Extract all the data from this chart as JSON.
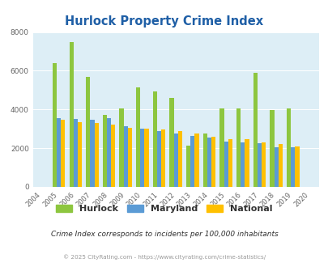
{
  "title": "Hurlock Property Crime Index",
  "years": [
    2004,
    2005,
    2006,
    2007,
    2008,
    2009,
    2010,
    2011,
    2012,
    2013,
    2014,
    2015,
    2016,
    2017,
    2018,
    2019,
    2020
  ],
  "hurlock": [
    null,
    6400,
    7500,
    5700,
    3700,
    4050,
    5150,
    4950,
    4600,
    2150,
    2750,
    4050,
    4050,
    5900,
    3950,
    4050,
    null
  ],
  "maryland": [
    null,
    3550,
    3500,
    3450,
    3550,
    3150,
    3000,
    2900,
    2750,
    2650,
    2550,
    2350,
    2300,
    2250,
    2050,
    2050,
    null
  ],
  "national": [
    null,
    3450,
    3350,
    3300,
    3200,
    3050,
    3000,
    2950,
    2900,
    2750,
    2600,
    2450,
    2450,
    2300,
    2200,
    2100,
    null
  ],
  "bar_width": 0.25,
  "hurlock_color": "#8dc63f",
  "maryland_color": "#5b9bd5",
  "national_color": "#ffc000",
  "bg_color": "#ddeef6",
  "ylim": [
    0,
    8000
  ],
  "yticks": [
    0,
    2000,
    4000,
    6000,
    8000
  ],
  "subtitle": "Crime Index corresponds to incidents per 100,000 inhabitants",
  "footer": "© 2025 CityRating.com - https://www.cityrating.com/crime-statistics/",
  "title_color": "#1f5fa6",
  "subtitle_color": "#2f2f2f",
  "footer_color": "#999999",
  "legend_labels": [
    "Hurlock",
    "Maryland",
    "National"
  ]
}
